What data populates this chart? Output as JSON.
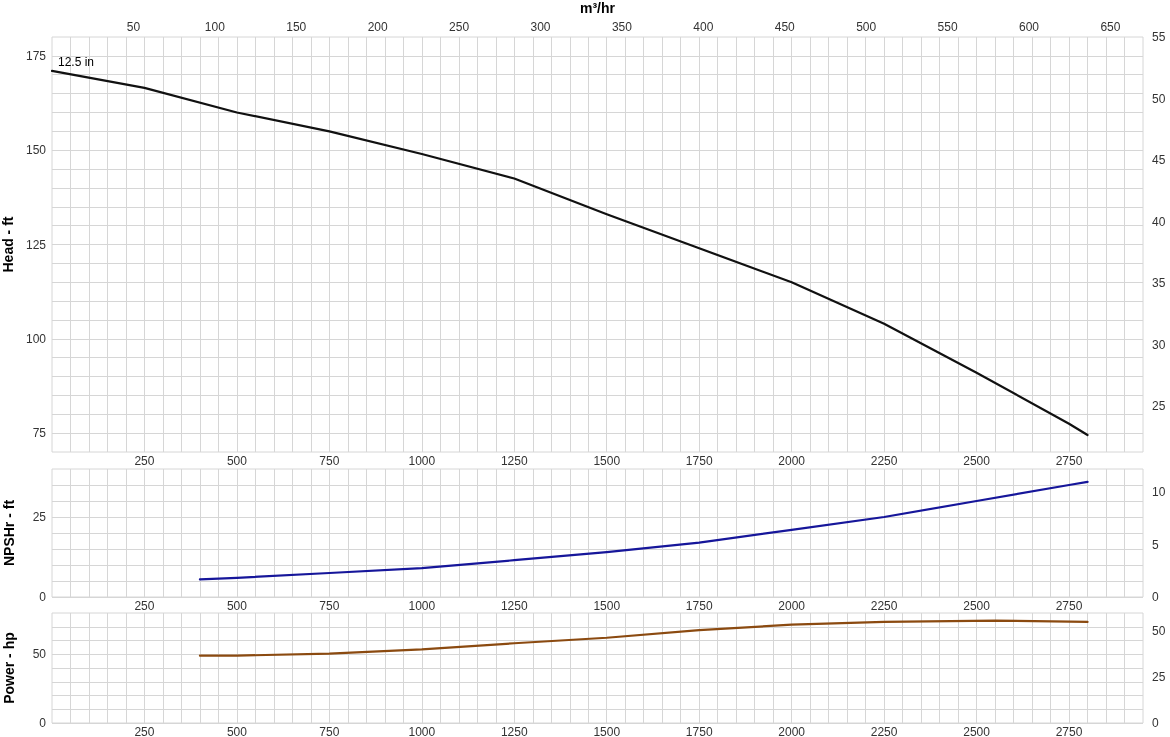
{
  "chart_data": [
    {
      "type": "line",
      "x2label": "m³/hr",
      "ylabel": "Head - ft",
      "x": [
        0,
        250,
        500,
        750,
        1000,
        1250,
        1500,
        1750,
        2000,
        2250,
        2500,
        2750,
        2800
      ],
      "series": [
        {
          "name": "12.5 in",
          "color": "#111111",
          "values": [
            171,
            166.5,
            160,
            155,
            149,
            142.5,
            133,
            124,
            115,
            104,
            91,
            77.5,
            74.5
          ]
        }
      ],
      "xlim": [
        0,
        2950
      ],
      "xticks": [
        {
          "value": 50,
          "label": null
        },
        {
          "value": 100,
          "label": null
        },
        {
          "value": 150,
          "label": null
        },
        {
          "value": 200,
          "label": null
        },
        250,
        {
          "value": 300,
          "label": null
        },
        {
          "value": 350,
          "label": null
        },
        {
          "value": 400,
          "label": null
        },
        {
          "value": 450,
          "label": null
        },
        500,
        {
          "value": 550,
          "label": null
        },
        {
          "value": 600,
          "label": null
        },
        {
          "value": 650,
          "label": null
        },
        {
          "value": 700,
          "label": null
        },
        750,
        {
          "value": 800,
          "label": null
        },
        {
          "value": 850,
          "label": null
        },
        {
          "value": 900,
          "label": null
        },
        {
          "value": 950,
          "label": null
        },
        1000,
        {
          "value": 1050,
          "label": null
        },
        {
          "value": 1100,
          "label": null
        },
        {
          "value": 1150,
          "label": null
        },
        {
          "value": 1200,
          "label": null
        },
        1250,
        {
          "value": 1300,
          "label": null
        },
        {
          "value": 1350,
          "label": null
        },
        {
          "value": 1400,
          "label": null
        },
        {
          "value": 1450,
          "label": null
        },
        1500,
        {
          "value": 1550,
          "label": null
        },
        {
          "value": 1600,
          "label": null
        },
        {
          "value": 1650,
          "label": null
        },
        {
          "value": 1700,
          "label": null
        },
        1750,
        {
          "value": 1800,
          "label": null
        },
        {
          "value": 1850,
          "label": null
        },
        {
          "value": 1900,
          "label": null
        },
        {
          "value": 1950,
          "label": null
        },
        2000,
        {
          "value": 2050,
          "label": null
        },
        {
          "value": 2100,
          "label": null
        },
        {
          "value": 2150,
          "label": null
        },
        {
          "value": 2200,
          "label": null
        },
        2250,
        {
          "value": 2300,
          "label": null
        },
        {
          "value": 2350,
          "label": null
        },
        {
          "value": 2400,
          "label": null
        },
        {
          "value": 2450,
          "label": null
        },
        2500,
        {
          "value": 2550,
          "label": null
        },
        {
          "value": 2600,
          "label": null
        },
        {
          "value": 2650,
          "label": null
        },
        {
          "value": 2700,
          "label": null
        },
        2750,
        {
          "value": 2800,
          "label": null
        },
        {
          "value": 2850,
          "label": null
        },
        {
          "value": 2900,
          "label": null
        }
      ],
      "x2lim": [
        0,
        670
      ],
      "x2ticks": [
        50,
        100,
        150,
        200,
        250,
        300,
        350,
        400,
        450,
        500,
        550,
        600,
        650
      ],
      "ylim": [
        70,
        180
      ],
      "yticks": [
        75,
        {
          "value": 80,
          "label": null
        },
        {
          "value": 85,
          "label": null
        },
        {
          "value": 90,
          "label": null
        },
        {
          "value": 95,
          "label": null
        },
        100,
        {
          "value": 105,
          "label": null
        },
        {
          "value": 110,
          "label": null
        },
        {
          "value": 115,
          "label": null
        },
        {
          "value": 120,
          "label": null
        },
        125,
        {
          "value": 130,
          "label": null
        },
        {
          "value": 135,
          "label": null
        },
        {
          "value": 140,
          "label": null
        },
        {
          "value": 145,
          "label": null
        },
        150,
        {
          "value": 155,
          "label": null
        },
        {
          "value": 160,
          "label": null
        },
        {
          "value": 165,
          "label": null
        },
        {
          "value": 170,
          "label": null
        },
        175
      ],
      "y2lim": [
        21.3,
        55
      ],
      "y2ticks": [
        25,
        30,
        35,
        40,
        45,
        50,
        55
      ],
      "grid": true
    },
    {
      "type": "line",
      "ylabel": "NPSHr - ft",
      "x": [
        400,
        500,
        750,
        1000,
        1250,
        1500,
        1750,
        2000,
        2250,
        2500,
        2750,
        2800
      ],
      "series": [
        {
          "color": "#16169a",
          "values": [
            5.5,
            6,
            7.5,
            9,
            11.5,
            14,
            17,
            21,
            25,
            30,
            35,
            36
          ]
        }
      ],
      "xlim": [
        0,
        2950
      ],
      "xticks": [
        {
          "value": 50,
          "label": null
        },
        {
          "value": 100,
          "label": null
        },
        {
          "value": 150,
          "label": null
        },
        {
          "value": 200,
          "label": null
        },
        250,
        {
          "value": 300,
          "label": null
        },
        {
          "value": 350,
          "label": null
        },
        {
          "value": 400,
          "label": null
        },
        {
          "value": 450,
          "label": null
        },
        500,
        {
          "value": 550,
          "label": null
        },
        {
          "value": 600,
          "label": null
        },
        {
          "value": 650,
          "label": null
        },
        {
          "value": 700,
          "label": null
        },
        750,
        {
          "value": 800,
          "label": null
        },
        {
          "value": 850,
          "label": null
        },
        {
          "value": 900,
          "label": null
        },
        {
          "value": 950,
          "label": null
        },
        1000,
        {
          "value": 1050,
          "label": null
        },
        {
          "value": 1100,
          "label": null
        },
        {
          "value": 1150,
          "label": null
        },
        {
          "value": 1200,
          "label": null
        },
        1250,
        {
          "value": 1300,
          "label": null
        },
        {
          "value": 1350,
          "label": null
        },
        {
          "value": 1400,
          "label": null
        },
        {
          "value": 1450,
          "label": null
        },
        1500,
        {
          "value": 1550,
          "label": null
        },
        {
          "value": 1600,
          "label": null
        },
        {
          "value": 1650,
          "label": null
        },
        {
          "value": 1700,
          "label": null
        },
        1750,
        {
          "value": 1800,
          "label": null
        },
        {
          "value": 1850,
          "label": null
        },
        {
          "value": 1900,
          "label": null
        },
        {
          "value": 1950,
          "label": null
        },
        2000,
        {
          "value": 2050,
          "label": null
        },
        {
          "value": 2100,
          "label": null
        },
        {
          "value": 2150,
          "label": null
        },
        {
          "value": 2200,
          "label": null
        },
        2250,
        {
          "value": 2300,
          "label": null
        },
        {
          "value": 2350,
          "label": null
        },
        {
          "value": 2400,
          "label": null
        },
        {
          "value": 2450,
          "label": null
        },
        2500,
        {
          "value": 2550,
          "label": null
        },
        {
          "value": 2600,
          "label": null
        },
        {
          "value": 2650,
          "label": null
        },
        {
          "value": 2700,
          "label": null
        },
        2750,
        {
          "value": 2800,
          "label": null
        },
        {
          "value": 2850,
          "label": null
        },
        {
          "value": 2900,
          "label": null
        }
      ],
      "ylim": [
        0,
        40
      ],
      "yticks": [
        0,
        {
          "value": 5,
          "label": null
        },
        {
          "value": 10,
          "label": null
        },
        {
          "value": 15,
          "label": null
        },
        {
          "value": 20,
          "label": null
        },
        25,
        {
          "value": 30,
          "label": null
        },
        {
          "value": 35,
          "label": null
        }
      ],
      "y2lim": [
        0,
        12.2
      ],
      "y2ticks": [
        0,
        5,
        10
      ],
      "grid": true
    },
    {
      "type": "line",
      "ylabel": "Power - hp",
      "x": [
        400,
        500,
        750,
        1000,
        1250,
        1500,
        1750,
        2000,
        2250,
        2550,
        2800
      ],
      "series": [
        {
          "color": "#8b4a10",
          "values": [
            49,
            49,
            50.5,
            53.5,
            58,
            62,
            67.5,
            71.5,
            73.5,
            74.5,
            73.5
          ]
        }
      ],
      "xlim": [
        0,
        2950
      ],
      "xticks": [
        {
          "value": 50,
          "label": null
        },
        {
          "value": 100,
          "label": null
        },
        {
          "value": 150,
          "label": null
        },
        {
          "value": 200,
          "label": null
        },
        250,
        {
          "value": 300,
          "label": null
        },
        {
          "value": 350,
          "label": null
        },
        {
          "value": 400,
          "label": null
        },
        {
          "value": 450,
          "label": null
        },
        500,
        {
          "value": 550,
          "label": null
        },
        {
          "value": 600,
          "label": null
        },
        {
          "value": 650,
          "label": null
        },
        {
          "value": 700,
          "label": null
        },
        750,
        {
          "value": 800,
          "label": null
        },
        {
          "value": 850,
          "label": null
        },
        {
          "value": 900,
          "label": null
        },
        {
          "value": 950,
          "label": null
        },
        1000,
        {
          "value": 1050,
          "label": null
        },
        {
          "value": 1100,
          "label": null
        },
        {
          "value": 1150,
          "label": null
        },
        {
          "value": 1200,
          "label": null
        },
        1250,
        {
          "value": 1300,
          "label": null
        },
        {
          "value": 1350,
          "label": null
        },
        {
          "value": 1400,
          "label": null
        },
        {
          "value": 1450,
          "label": null
        },
        1500,
        {
          "value": 1550,
          "label": null
        },
        {
          "value": 1600,
          "label": null
        },
        {
          "value": 1650,
          "label": null
        },
        {
          "value": 1700,
          "label": null
        },
        1750,
        {
          "value": 1800,
          "label": null
        },
        {
          "value": 1850,
          "label": null
        },
        {
          "value": 1900,
          "label": null
        },
        {
          "value": 1950,
          "label": null
        },
        2000,
        {
          "value": 2050,
          "label": null
        },
        {
          "value": 2100,
          "label": null
        },
        {
          "value": 2150,
          "label": null
        },
        {
          "value": 2200,
          "label": null
        },
        2250,
        {
          "value": 2300,
          "label": null
        },
        {
          "value": 2350,
          "label": null
        },
        {
          "value": 2400,
          "label": null
        },
        {
          "value": 2450,
          "label": null
        },
        2500,
        {
          "value": 2550,
          "label": null
        },
        {
          "value": 2600,
          "label": null
        },
        {
          "value": 2650,
          "label": null
        },
        {
          "value": 2700,
          "label": null
        },
        2750,
        {
          "value": 2800,
          "label": null
        },
        {
          "value": 2850,
          "label": null
        },
        {
          "value": 2900,
          "label": null
        }
      ],
      "ylim": [
        0,
        80
      ],
      "yticks": [
        0,
        {
          "value": 10,
          "label": null
        },
        {
          "value": 20,
          "label": null
        },
        {
          "value": 30,
          "label": null
        },
        {
          "value": 40,
          "label": null
        },
        50,
        {
          "value": 60,
          "label": null
        },
        {
          "value": 70,
          "label": null
        }
      ],
      "y2lim": [
        0,
        59.7
      ],
      "y2ticks": [
        0,
        25,
        50
      ],
      "grid": true
    }
  ]
}
